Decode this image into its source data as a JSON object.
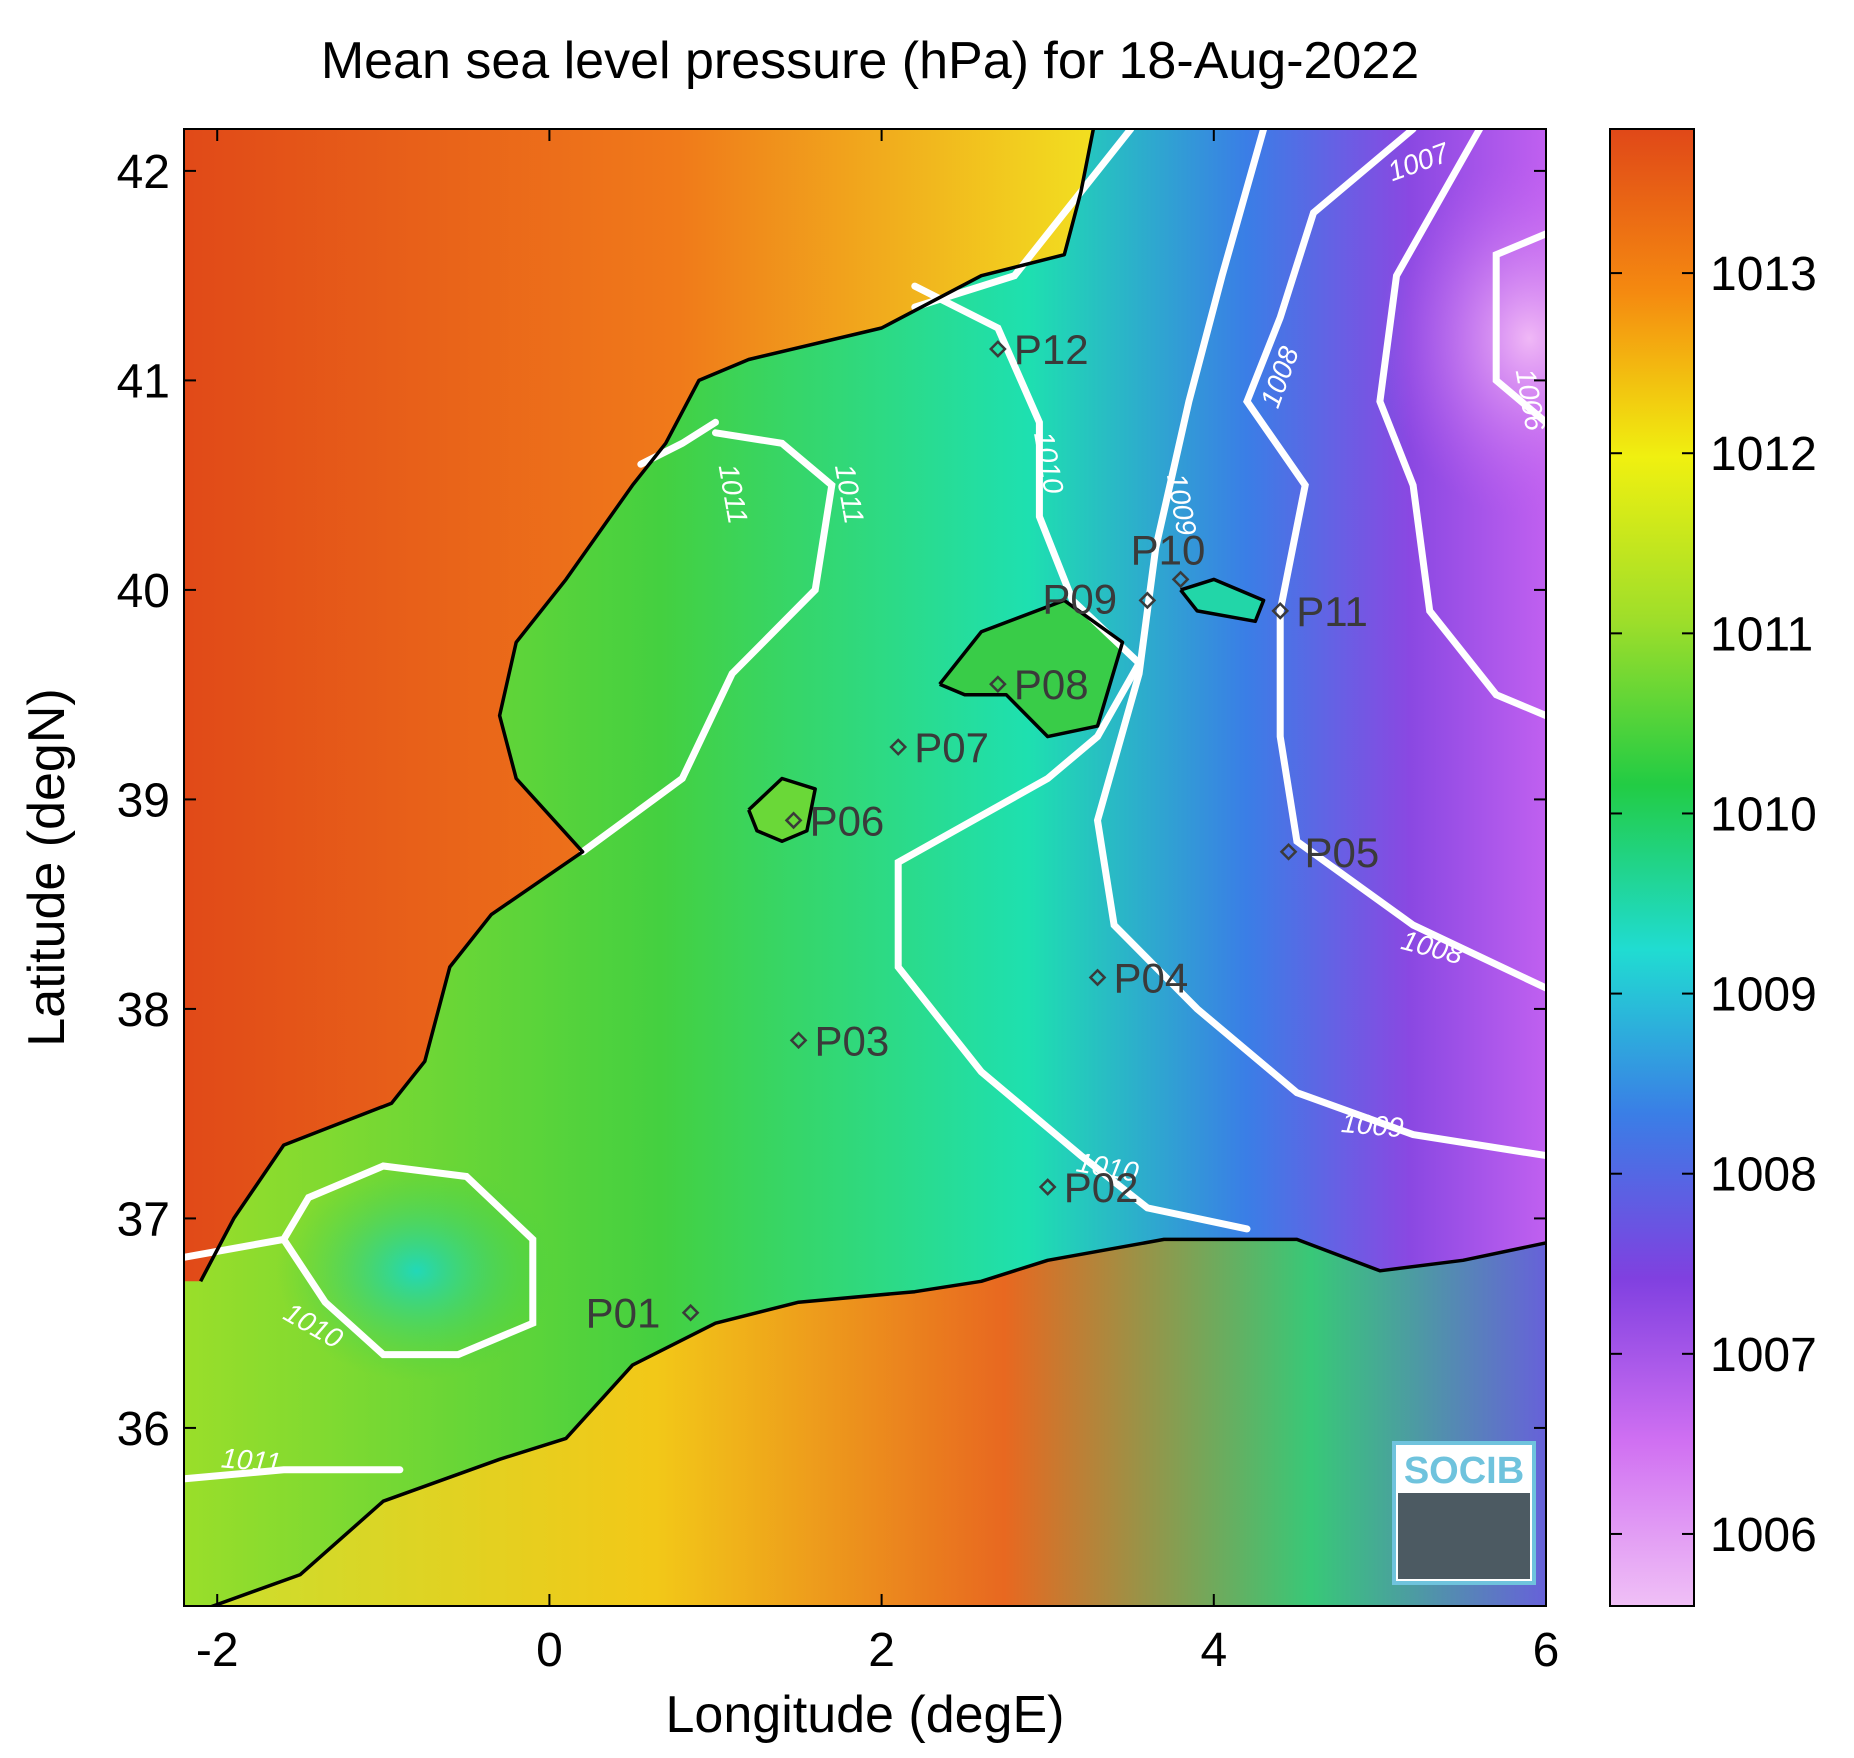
{
  "title": "Mean sea level pressure (hPa) for 18-Aug-2022",
  "axes": {
    "xlabel": "Longitude (degE)",
    "ylabel": "Latitude (degN)",
    "xlim": [
      -2.2,
      6.0
    ],
    "ylim": [
      35.15,
      42.2
    ],
    "xticks": [
      -2,
      0,
      2,
      4,
      6
    ],
    "yticks": [
      36,
      37,
      38,
      39,
      40,
      41,
      42
    ]
  },
  "colorbar": {
    "range": [
      1005.6,
      1013.8
    ],
    "ticks": [
      1006,
      1007,
      1008,
      1009,
      1010,
      1011,
      1012,
      1013
    ],
    "colors": [
      "#f0c0f6",
      "#d070f2",
      "#8040e0",
      "#3a7ee6",
      "#20dcd2",
      "#22cc44",
      "#9ede2a",
      "#f0f010",
      "#f58a10",
      "#e04818"
    ]
  },
  "stations": [
    {
      "name": "P01",
      "lon": 0.85,
      "lat": 36.55
    },
    {
      "name": "P02",
      "lon": 3.0,
      "lat": 37.15
    },
    {
      "name": "P03",
      "lon": 1.5,
      "lat": 37.85
    },
    {
      "name": "P04",
      "lon": 3.3,
      "lat": 38.15
    },
    {
      "name": "P05",
      "lon": 4.45,
      "lat": 38.75
    },
    {
      "name": "P06",
      "lon": 1.47,
      "lat": 38.9
    },
    {
      "name": "P07",
      "lon": 2.1,
      "lat": 39.25
    },
    {
      "name": "P08",
      "lon": 2.7,
      "lat": 39.55
    },
    {
      "name": "P09",
      "lon": 3.6,
      "lat": 39.95
    },
    {
      "name": "P10",
      "lon": 3.8,
      "lat": 40.05
    },
    {
      "name": "P11",
      "lon": 4.4,
      "lat": 39.9
    },
    {
      "name": "P12",
      "lon": 2.7,
      "lat": 41.15
    }
  ],
  "contour_labels": [
    "1006",
    "1007",
    "1008",
    "1008",
    "1009",
    "1009",
    "1010",
    "1010",
    "1010",
    "1011",
    "1011",
    "1011"
  ],
  "logo": {
    "text": "SOCIB"
  }
}
